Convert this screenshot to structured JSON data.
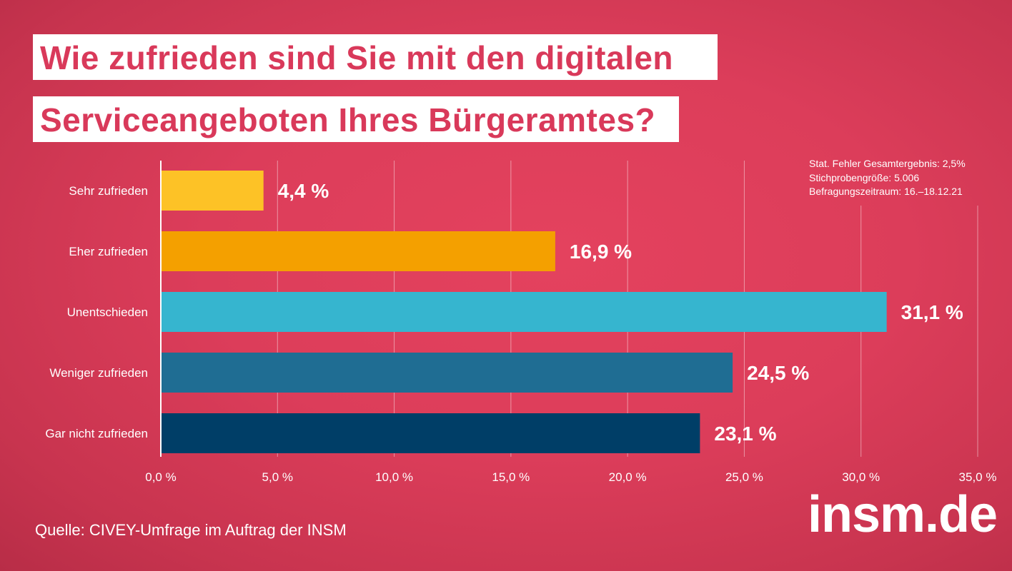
{
  "title": {
    "line1": "Wie zufrieden sind Sie mit den digitalen",
    "line2": "Serviceangeboten Ihres Bürgeramtes?"
  },
  "meta": {
    "error": "Stat. Fehler Gesamtergebnis: 2,5%",
    "sample": "Stichprobengröße: 5.006",
    "period": "Befragungszeitraum: 16.–18.12.21"
  },
  "source": "Quelle: CIVEY-Umfrage im Auftrag der INSM",
  "logo": "insm.de",
  "chart_data": {
    "type": "bar",
    "orientation": "horizontal",
    "categories": [
      "Sehr zufrieden",
      "Eher zufrieden",
      "Unentschieden",
      "Weniger zufrieden",
      "Gar nicht zufrieden"
    ],
    "values": [
      4.4,
      16.9,
      31.1,
      24.5,
      23.1
    ],
    "value_labels": [
      "4,4 %",
      "16,9 %",
      "31,1 %",
      "24,5 %",
      "23,1 %"
    ],
    "colors": [
      "#fdc226",
      "#f4a000",
      "#36b5cf",
      "#1f6d93",
      "#003e67"
    ],
    "xlim": [
      0,
      35
    ],
    "xticks": [
      0,
      5,
      10,
      15,
      20,
      25,
      30,
      35
    ],
    "xtick_labels": [
      "0,0 %",
      "5,0 %",
      "10,0 %",
      "15,0 %",
      "20,0 %",
      "25,0 %",
      "30,0 %",
      "35,0 %"
    ],
    "grid": true
  }
}
